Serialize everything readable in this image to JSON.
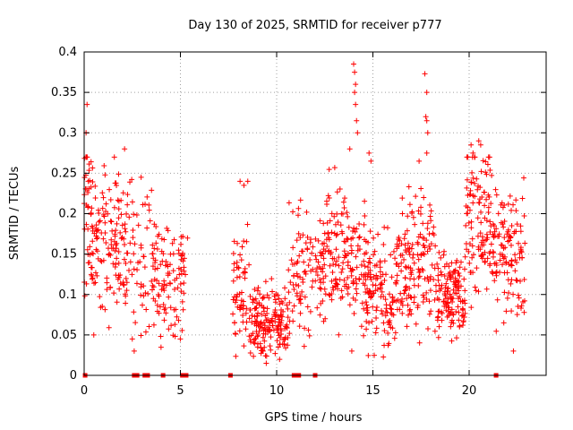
{
  "chart_data": {
    "type": "scatter",
    "title": "Day 130 of 2025, SRMTID for receiver p777",
    "xlabel": "GPS time / hours",
    "ylabel": "SRMTID / TECUs",
    "xlim": [
      0,
      24
    ],
    "ylim": [
      0,
      0.4
    ],
    "xticks": [
      0,
      5,
      10,
      15,
      20
    ],
    "xtick_labels": [
      "0",
      "5",
      "10",
      "15",
      "20"
    ],
    "yticks": [
      0,
      0.05,
      0.1,
      0.15,
      0.2,
      0.25,
      0.3,
      0.35,
      0.4
    ],
    "ytick_labels": [
      "0",
      "0.05",
      "0.1",
      "0.15",
      "0.2",
      "0.25",
      "0.3",
      "0.35",
      "0.4"
    ],
    "grid": true,
    "marker": "+",
    "series_color": "#ff0000",
    "clusters": [
      {
        "x_start": 0.0,
        "x_end": 0.4,
        "y_center": 0.2,
        "y_spread": 0.05,
        "count": 40
      },
      {
        "x_start": 0.4,
        "x_end": 2.6,
        "y_center": 0.165,
        "y_spread": 0.045,
        "count": 150
      },
      {
        "x_start": 2.6,
        "x_end": 3.5,
        "y_center": 0.15,
        "y_spread": 0.045,
        "count": 35
      },
      {
        "x_start": 3.5,
        "x_end": 5.4,
        "y_center": 0.12,
        "y_spread": 0.035,
        "count": 110
      },
      {
        "x_start": 7.7,
        "x_end": 8.6,
        "y_center": 0.1,
        "y_spread": 0.04,
        "count": 60
      },
      {
        "x_start": 8.6,
        "x_end": 10.6,
        "y_center": 0.065,
        "y_spread": 0.022,
        "count": 170
      },
      {
        "x_start": 10.6,
        "x_end": 12.5,
        "y_center": 0.13,
        "y_spread": 0.04,
        "count": 110
      },
      {
        "x_start": 12.5,
        "x_end": 14.6,
        "y_center": 0.15,
        "y_spread": 0.045,
        "count": 150
      },
      {
        "x_start": 14.6,
        "x_end": 16.2,
        "y_center": 0.1,
        "y_spread": 0.035,
        "count": 120
      },
      {
        "x_start": 16.2,
        "x_end": 18.2,
        "y_center": 0.145,
        "y_spread": 0.04,
        "count": 150
      },
      {
        "x_start": 18.2,
        "x_end": 19.8,
        "y_center": 0.1,
        "y_spread": 0.025,
        "count": 140
      },
      {
        "x_start": 19.8,
        "x_end": 21.2,
        "y_center": 0.19,
        "y_spread": 0.045,
        "count": 110
      },
      {
        "x_start": 21.2,
        "x_end": 22.9,
        "y_center": 0.15,
        "y_spread": 0.04,
        "count": 120
      }
    ],
    "outliers": [
      {
        "x": 0.1,
        "y": 0.3
      },
      {
        "x": 0.15,
        "y": 0.335
      },
      {
        "x": 2.1,
        "y": 0.28
      },
      {
        "x": 2.5,
        "y": 0.045
      },
      {
        "x": 2.6,
        "y": 0.03
      },
      {
        "x": 0.5,
        "y": 0.05
      },
      {
        "x": 14.0,
        "y": 0.385
      },
      {
        "x": 14.05,
        "y": 0.375
      },
      {
        "x": 14.1,
        "y": 0.36
      },
      {
        "x": 14.05,
        "y": 0.35
      },
      {
        "x": 14.1,
        "y": 0.335
      },
      {
        "x": 14.15,
        "y": 0.315
      },
      {
        "x": 14.2,
        "y": 0.3
      },
      {
        "x": 13.8,
        "y": 0.28
      },
      {
        "x": 14.8,
        "y": 0.275
      },
      {
        "x": 14.9,
        "y": 0.265
      },
      {
        "x": 17.7,
        "y": 0.373
      },
      {
        "x": 17.8,
        "y": 0.35
      },
      {
        "x": 17.75,
        "y": 0.32
      },
      {
        "x": 17.8,
        "y": 0.315
      },
      {
        "x": 17.85,
        "y": 0.3
      },
      {
        "x": 17.8,
        "y": 0.275
      },
      {
        "x": 17.4,
        "y": 0.265
      },
      {
        "x": 20.1,
        "y": 0.285
      },
      {
        "x": 20.2,
        "y": 0.275
      },
      {
        "x": 20.5,
        "y": 0.29
      },
      {
        "x": 20.6,
        "y": 0.285
      },
      {
        "x": 20.3,
        "y": 0.27
      },
      {
        "x": 8.1,
        "y": 0.24
      },
      {
        "x": 8.3,
        "y": 0.235
      },
      {
        "x": 8.5,
        "y": 0.24
      },
      {
        "x": 22.3,
        "y": 0.03
      },
      {
        "x": 21.8,
        "y": 0.065
      },
      {
        "x": 19.5,
        "y": 0.06
      }
    ],
    "zero_markers": [
      0.05,
      2.6,
      2.75,
      3.15,
      3.3,
      4.1,
      5.1,
      5.3,
      7.6,
      10.9,
      11.05,
      11.15,
      12.0,
      21.4
    ]
  }
}
